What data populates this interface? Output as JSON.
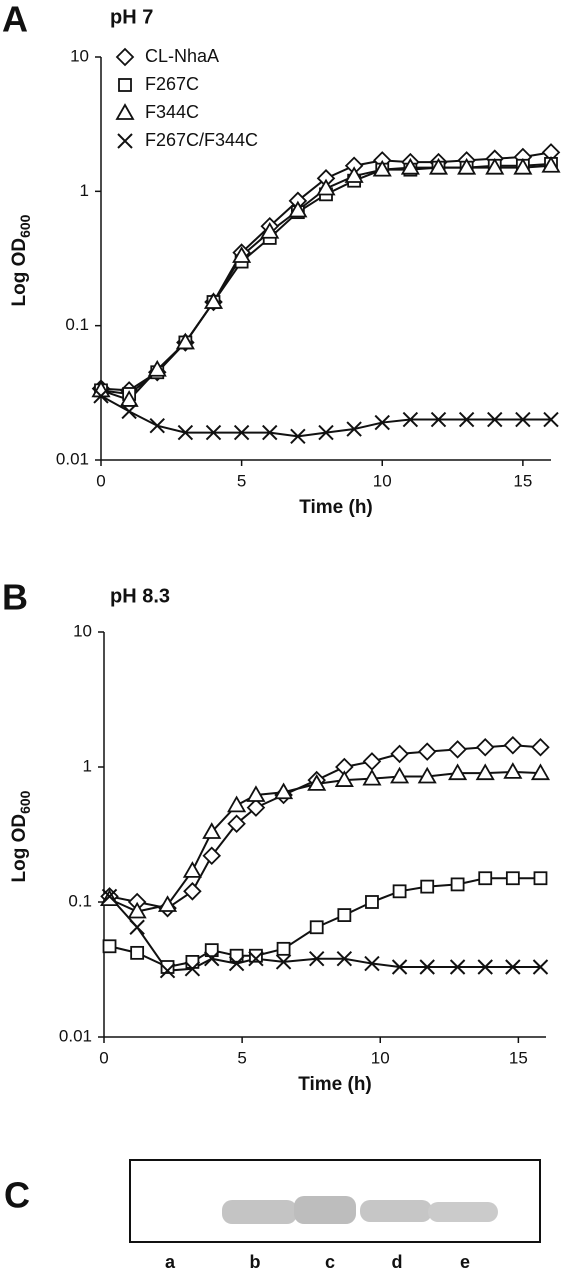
{
  "chart_data": [
    {
      "type": "line",
      "panel": "A",
      "title": "pH 7",
      "x_label": "Time (h)",
      "y_label": "Log OD",
      "y_label_subscript": "600",
      "log_y": true,
      "xlim": [
        0,
        16
      ],
      "ylim": [
        0.01,
        10
      ],
      "xticks": [
        0,
        5,
        10,
        15
      ],
      "yticks": [
        0.01,
        0.1,
        1,
        10
      ],
      "legend": "top-left",
      "x": [
        0,
        1,
        2,
        3,
        4,
        5,
        6,
        7,
        8,
        9,
        10,
        11,
        12,
        13,
        14,
        15,
        16
      ],
      "series": [
        {
          "name": "CL-NhaA",
          "color": "#111111",
          "marker": "diamond",
          "values": [
            0.034,
            0.033,
            0.045,
            0.075,
            0.15,
            0.35,
            0.55,
            0.85,
            1.25,
            1.55,
            1.7,
            1.65,
            1.65,
            1.7,
            1.75,
            1.8,
            1.95
          ]
        },
        {
          "name": "F267C",
          "color": "#111111",
          "marker": "square",
          "values": [
            0.033,
            0.031,
            0.045,
            0.075,
            0.15,
            0.3,
            0.45,
            0.7,
            0.95,
            1.2,
            1.45,
            1.45,
            1.5,
            1.5,
            1.55,
            1.55,
            1.6
          ]
        },
        {
          "name": "F344C",
          "color": "#111111",
          "marker": "triangle",
          "values": [
            0.033,
            0.028,
            0.047,
            0.075,
            0.15,
            0.33,
            0.5,
            0.72,
            1.05,
            1.3,
            1.45,
            1.5,
            1.5,
            1.5,
            1.5,
            1.5,
            1.55
          ]
        },
        {
          "name": "F267C/F344C",
          "color": "#111111",
          "marker": "cross",
          "values": [
            0.03,
            0.023,
            0.018,
            0.016,
            0.016,
            0.016,
            0.016,
            0.015,
            0.016,
            0.017,
            0.019,
            0.02,
            0.02,
            0.02,
            0.02,
            0.02,
            0.02
          ]
        }
      ]
    },
    {
      "type": "line",
      "panel": "B",
      "title": "pH 8.3",
      "x_label": "Time (h)",
      "y_label": "Log OD",
      "y_label_subscript": "600",
      "log_y": true,
      "xlim": [
        0,
        16
      ],
      "ylim": [
        0.01,
        10
      ],
      "xticks": [
        0,
        5,
        10,
        15
      ],
      "yticks": [
        0.01,
        0.1,
        1,
        10
      ],
      "x": [
        0.2,
        1.2,
        2.3,
        3.2,
        3.9,
        4.8,
        5.5,
        6.5,
        7.7,
        8.7,
        9.7,
        10.7,
        11.7,
        12.8,
        13.8,
        14.8,
        15.8
      ],
      "series": [
        {
          "name": "CL-NhaA",
          "color": "#111111",
          "marker": "diamond",
          "values": [
            0.11,
            0.1,
            0.09,
            0.12,
            0.22,
            0.38,
            0.5,
            0.62,
            0.8,
            1.0,
            1.1,
            1.25,
            1.3,
            1.35,
            1.4,
            1.45,
            1.4
          ]
        },
        {
          "name": "F267C",
          "color": "#111111",
          "marker": "square",
          "values": [
            0.047,
            0.042,
            0.033,
            0.036,
            0.044,
            0.04,
            0.04,
            0.045,
            0.065,
            0.08,
            0.1,
            0.12,
            0.13,
            0.135,
            0.15,
            0.15,
            0.15
          ]
        },
        {
          "name": "F344C",
          "color": "#111111",
          "marker": "triangle",
          "values": [
            0.105,
            0.085,
            0.095,
            0.17,
            0.33,
            0.52,
            0.62,
            0.65,
            0.75,
            0.8,
            0.82,
            0.85,
            0.85,
            0.9,
            0.9,
            0.92,
            0.9
          ]
        },
        {
          "name": "F267C/F344C",
          "color": "#111111",
          "marker": "cross",
          "values": [
            0.11,
            0.065,
            0.031,
            0.032,
            0.038,
            0.035,
            0.038,
            0.036,
            0.038,
            0.038,
            0.035,
            0.033,
            0.033,
            0.033,
            0.033,
            0.033,
            0.033
          ]
        }
      ]
    }
  ],
  "blot": {
    "panel": "C",
    "lanes": [
      "a",
      "b",
      "c",
      "d",
      "e"
    ]
  }
}
